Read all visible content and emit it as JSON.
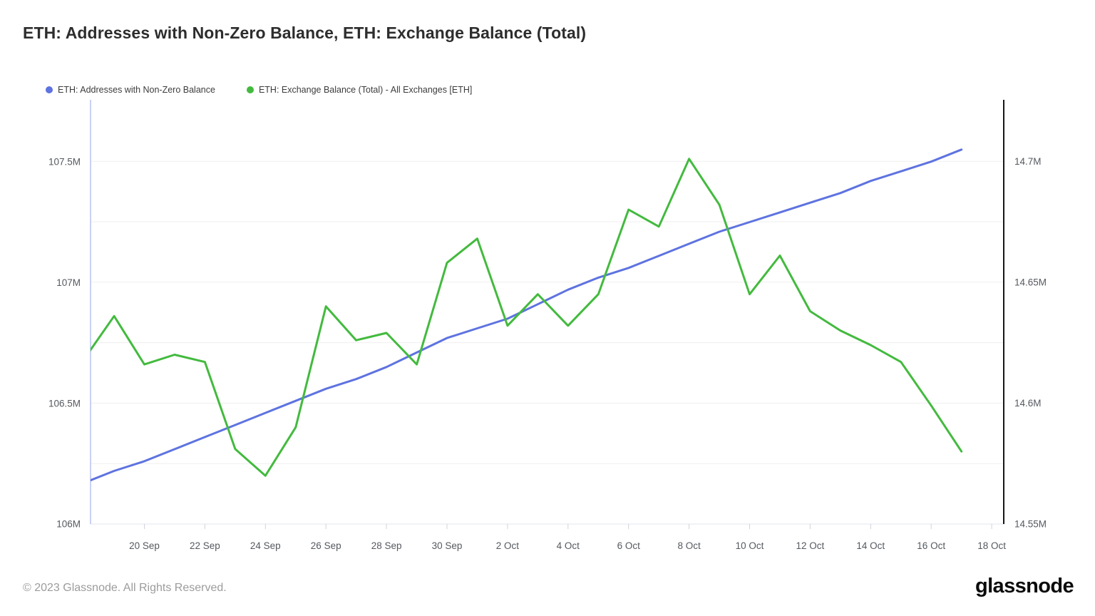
{
  "header": {
    "title": "ETH: Addresses with Non-Zero Balance, ETH: Exchange Balance (Total)"
  },
  "legend": [
    {
      "label": "ETH: Addresses with Non-Zero Balance",
      "color": "#5e73e0"
    },
    {
      "label": "ETH: Exchange Balance (Total) - All Exchanges [ETH]",
      "color": "#43ba3e"
    }
  ],
  "footer": {
    "copyright": "© 2023 Glassnode. All Rights Reserved.",
    "brand": "glassnode"
  },
  "chart_data": {
    "type": "line",
    "title": "ETH: Addresses with Non-Zero Balance, ETH: Exchange Balance (Total)",
    "x": [
      "18 Sep",
      "19 Sep",
      "20 Sep",
      "21 Sep",
      "22 Sep",
      "23 Sep",
      "24 Sep",
      "25 Sep",
      "26 Sep",
      "27 Sep",
      "28 Sep",
      "29 Sep",
      "30 Sep",
      "1 Oct",
      "2 Oct",
      "3 Oct",
      "4 Oct",
      "5 Oct",
      "6 Oct",
      "7 Oct",
      "8 Oct",
      "9 Oct",
      "10 Oct",
      "11 Oct",
      "12 Oct",
      "13 Oct",
      "14 Oct",
      "15 Oct",
      "16 Oct",
      "17 Oct"
    ],
    "x_tick_labels": [
      "20 Sep",
      "22 Sep",
      "24 Sep",
      "26 Sep",
      "28 Sep",
      "30 Sep",
      "2 Oct",
      "4 Oct",
      "6 Oct",
      "8 Oct",
      "10 Oct",
      "12 Oct",
      "14 Oct",
      "16 Oct",
      "18 Oct"
    ],
    "series": [
      {
        "name": "ETH: Addresses with Non-Zero Balance",
        "axis": "left",
        "color": "#5e73e0",
        "unit": "M addresses",
        "values": [
          106.17,
          106.22,
          106.26,
          106.31,
          106.36,
          106.41,
          106.46,
          106.51,
          106.56,
          106.6,
          106.65,
          106.71,
          106.77,
          106.81,
          106.85,
          106.91,
          106.97,
          107.02,
          107.06,
          107.11,
          107.16,
          107.21,
          107.25,
          107.29,
          107.33,
          107.37,
          107.42,
          107.46,
          107.5,
          107.55
        ]
      },
      {
        "name": "ETH: Exchange Balance (Total) - All Exchanges [ETH]",
        "axis": "right",
        "color": "#43ba3e",
        "unit": "M ETH",
        "values": [
          14.618,
          14.636,
          14.616,
          14.62,
          14.617,
          14.581,
          14.57,
          14.59,
          14.64,
          14.626,
          14.629,
          14.616,
          14.658,
          14.668,
          14.632,
          14.645,
          14.632,
          14.645,
          14.68,
          14.673,
          14.701,
          14.682,
          14.645,
          14.661,
          14.638,
          14.63,
          14.624,
          14.617,
          14.599,
          14.58
        ]
      }
    ],
    "left_axis": {
      "ticks": [
        "107.5M",
        "107M",
        "106.5M",
        "106M"
      ],
      "tick_values": [
        107.5,
        107,
        106.5,
        106
      ],
      "min": 106,
      "max": 107.756
    },
    "right_axis": {
      "ticks": [
        "14.7M",
        "14.65M",
        "14.6M",
        "14.55M"
      ],
      "tick_values": [
        14.7,
        14.65,
        14.6,
        14.55
      ],
      "min": 14.55,
      "max": 14.7254
    },
    "grid": true,
    "gridline_step_right": 0.025,
    "legend_position": "top-left"
  }
}
